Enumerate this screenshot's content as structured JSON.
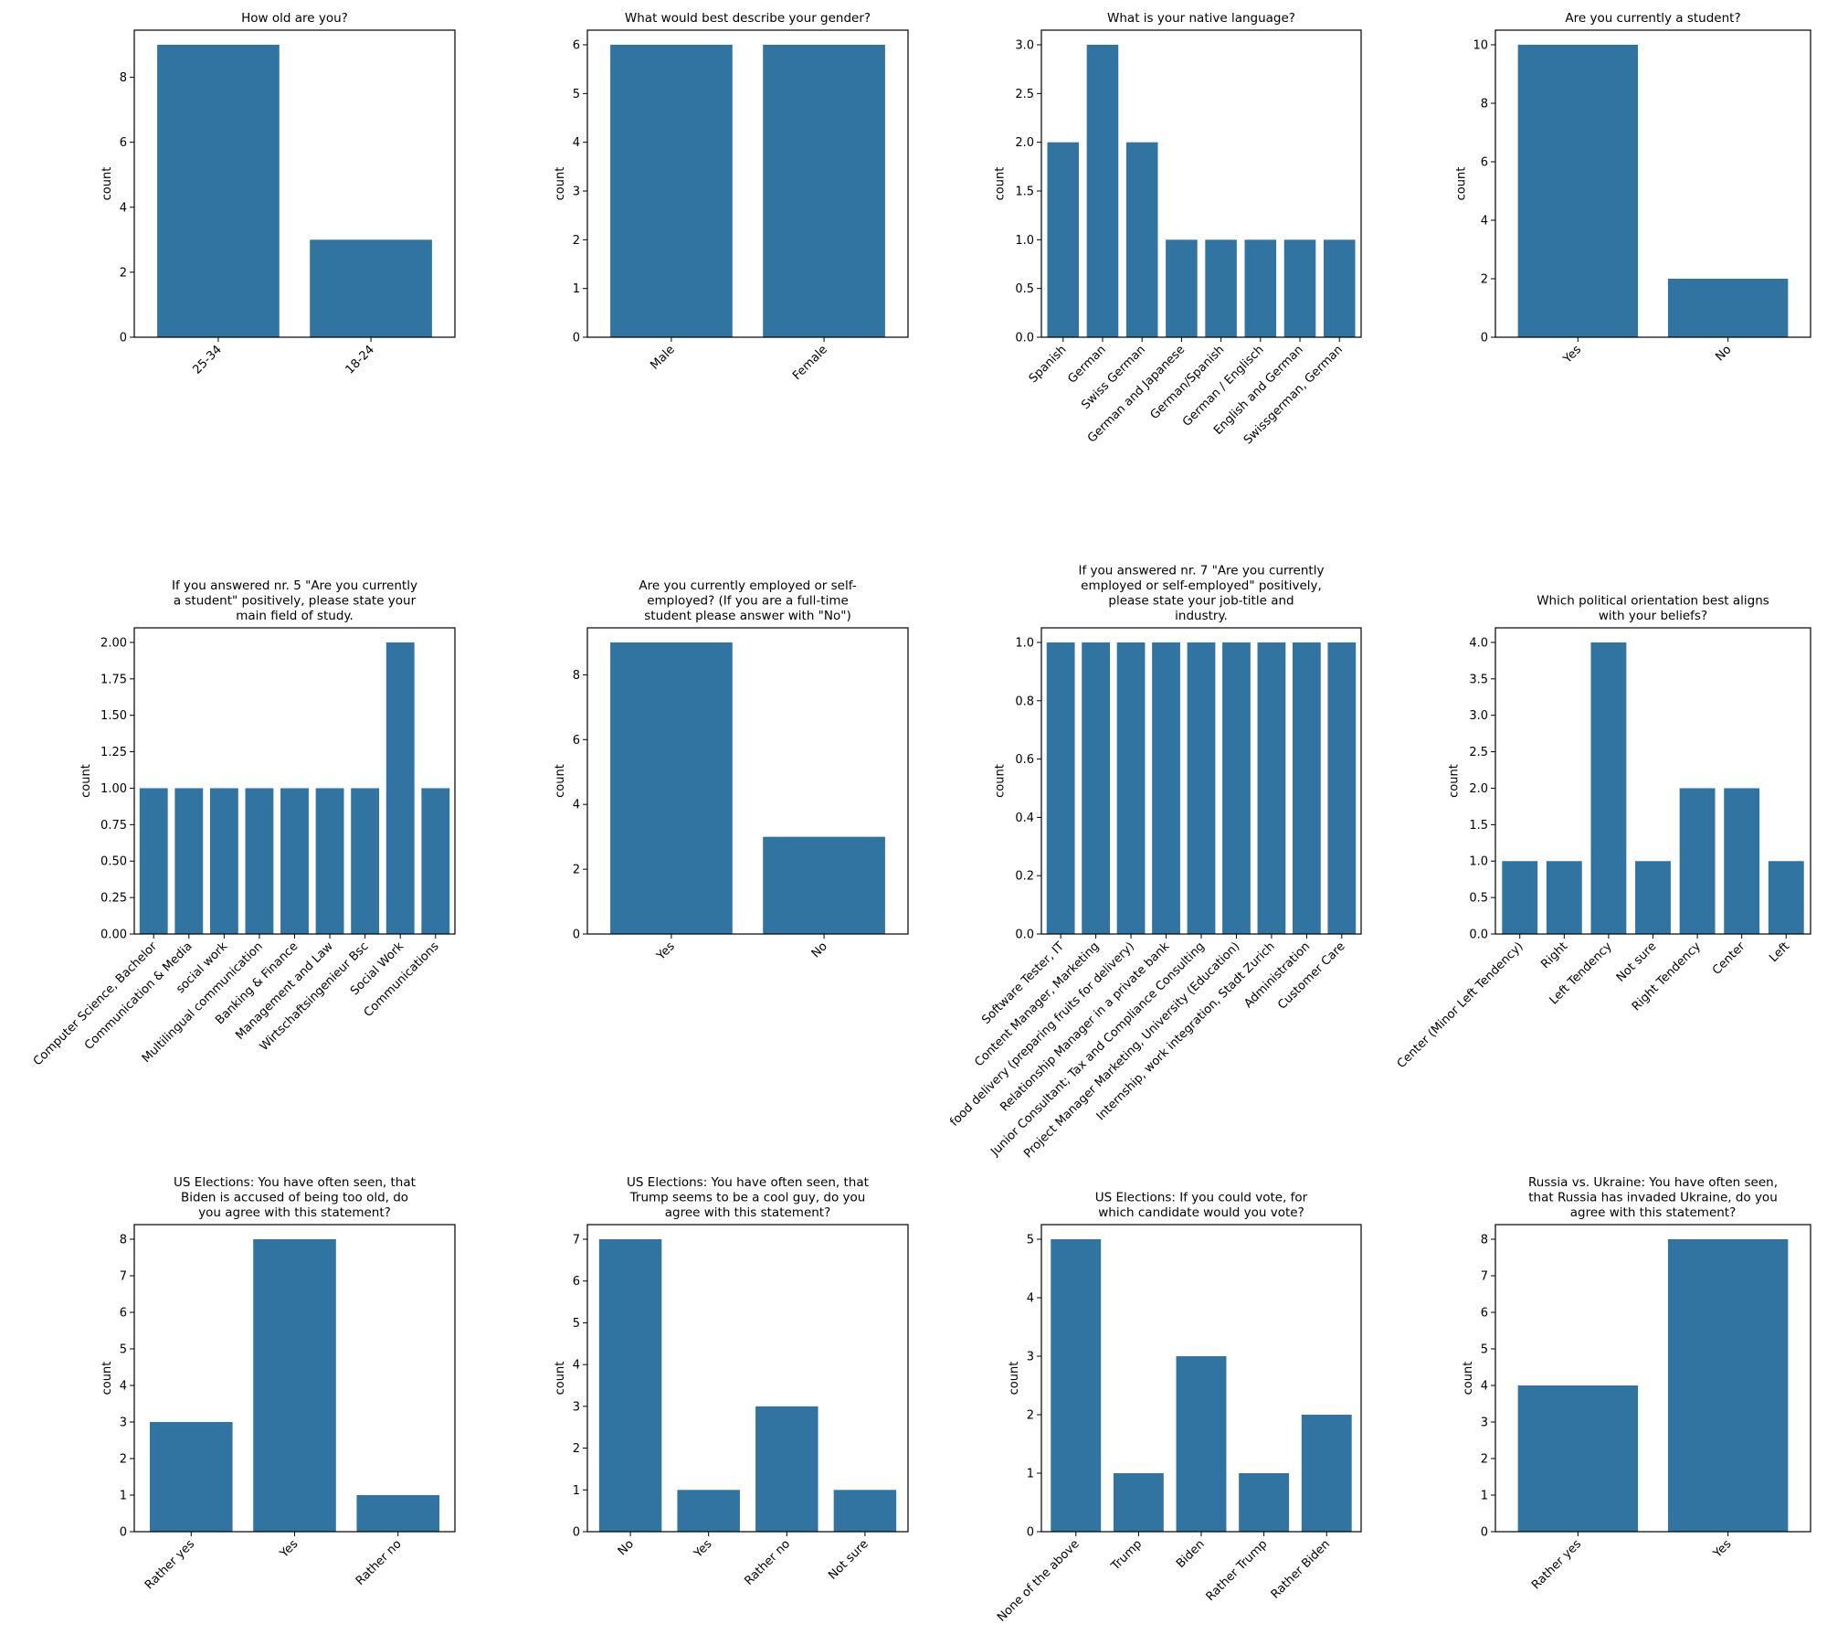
{
  "chart_data": [
    {
      "type": "bar",
      "title": "How old are you?",
      "xlabel": "",
      "ylabel": "count",
      "ylim": [
        0,
        9.45
      ],
      "yticks": [
        0,
        2,
        4,
        6,
        8
      ],
      "ytick_labels": [
        "0",
        "2",
        "4",
        "6",
        "8"
      ],
      "categories": [
        "25-34",
        "18-24"
      ],
      "values": [
        9,
        3
      ],
      "color": "#3274a1"
    },
    {
      "type": "bar",
      "title": "What would best describe your gender?",
      "xlabel": "",
      "ylabel": "count",
      "ylim": [
        0,
        6.3
      ],
      "yticks": [
        0,
        1,
        2,
        3,
        4,
        5,
        6
      ],
      "ytick_labels": [
        "0",
        "1",
        "2",
        "3",
        "4",
        "5",
        "6"
      ],
      "categories": [
        "Male",
        "Female"
      ],
      "values": [
        6,
        6
      ],
      "color": "#3274a1"
    },
    {
      "type": "bar",
      "title": "What is your native language?",
      "xlabel": "",
      "ylabel": "count",
      "ylim": [
        0,
        3.15
      ],
      "yticks": [
        0,
        0.5,
        1,
        1.5,
        2,
        2.5,
        3
      ],
      "ytick_labels": [
        "0.0",
        "0.5",
        "1.0",
        "1.5",
        "2.0",
        "2.5",
        "3.0"
      ],
      "categories": [
        "Spanish",
        "German",
        "Swiss German",
        "German and Japanese",
        "German/Spanish",
        "German / Englisch",
        "English and German",
        "Swissgerman, German"
      ],
      "values": [
        2,
        3,
        2,
        1,
        1,
        1,
        1,
        1
      ],
      "color": "#3274a1"
    },
    {
      "type": "bar",
      "title": "Are you currently a student?",
      "xlabel": "",
      "ylabel": "count",
      "ylim": [
        0,
        10.5
      ],
      "yticks": [
        0,
        2,
        4,
        6,
        8,
        10
      ],
      "ytick_labels": [
        "0",
        "2",
        "4",
        "6",
        "8",
        "10"
      ],
      "categories": [
        "Yes",
        "No"
      ],
      "values": [
        10,
        2
      ],
      "color": "#3274a1"
    },
    {
      "type": "bar",
      "title": "If you answered nr. 5 \"Are you currently\na student\" positively, please state your\nmain field of study.",
      "xlabel": "",
      "ylabel": "count",
      "ylim": [
        0,
        2.1
      ],
      "yticks": [
        0,
        0.25,
        0.5,
        0.75,
        1,
        1.25,
        1.5,
        1.75,
        2
      ],
      "ytick_labels": [
        "0.00",
        "0.25",
        "0.50",
        "0.75",
        "1.00",
        "1.25",
        "1.50",
        "1.75",
        "2.00"
      ],
      "categories": [
        "Computer Science, Bachelor",
        "Communication & Media",
        "social work",
        "Multilingual communication",
        "Banking & Finance",
        "Management and Law",
        "Wirtschaftsingenieur Bsc",
        "Social Work",
        "Communications"
      ],
      "values": [
        1,
        1,
        1,
        1,
        1,
        1,
        1,
        2,
        1
      ],
      "color": "#3274a1"
    },
    {
      "type": "bar",
      "title": "Are you currently employed or self-\nemployed? (If you are a full-time\nstudent please answer with \"No\")",
      "xlabel": "",
      "ylabel": "count",
      "ylim": [
        0,
        9.45
      ],
      "yticks": [
        0,
        2,
        4,
        6,
        8
      ],
      "ytick_labels": [
        "0",
        "2",
        "4",
        "6",
        "8"
      ],
      "categories": [
        "Yes",
        "No"
      ],
      "values": [
        9,
        3
      ],
      "color": "#3274a1"
    },
    {
      "type": "bar",
      "title": "If you answered nr. 7 \"Are you currently\nemployed or self-employed\" positively,\nplease state your job-title and\nindustry.",
      "xlabel": "",
      "ylabel": "count",
      "ylim": [
        0,
        1.05
      ],
      "yticks": [
        0,
        0.2,
        0.4,
        0.6,
        0.8,
        1
      ],
      "ytick_labels": [
        "0.0",
        "0.2",
        "0.4",
        "0.6",
        "0.8",
        "1.0"
      ],
      "categories": [
        "Software Tester, IT",
        "Content Manager, Marketing",
        "food delivery (preparing fruits for delivery)",
        "Relationship Manager in a private bank",
        "Junior Consultant; Tax and Compliance Consulting",
        "Project Manager Marketing, University (Education)",
        "Internship, work integration, Stadt Zurich",
        "Administration",
        "Customer Care"
      ],
      "values": [
        1,
        1,
        1,
        1,
        1,
        1,
        1,
        1,
        1
      ],
      "color": "#3274a1"
    },
    {
      "type": "bar",
      "title": "Which political orientation best aligns\nwith your beliefs?",
      "xlabel": "",
      "ylabel": "count",
      "ylim": [
        0,
        4.2
      ],
      "yticks": [
        0,
        0.5,
        1,
        1.5,
        2,
        2.5,
        3,
        3.5,
        4
      ],
      "ytick_labels": [
        "0.0",
        "0.5",
        "1.0",
        "1.5",
        "2.0",
        "2.5",
        "3.0",
        "3.5",
        "4.0"
      ],
      "categories": [
        "Center (Minor Left Tendency)",
        "Right",
        "Left Tendency",
        "Not sure",
        "Right Tendency",
        "Center",
        "Left"
      ],
      "values": [
        1,
        1,
        4,
        1,
        2,
        2,
        1
      ],
      "color": "#3274a1"
    },
    {
      "type": "bar",
      "title": "US Elections: You have often seen, that\nBiden is accused of being too old, do\nyou agree with this statement?",
      "xlabel": "",
      "ylabel": "count",
      "ylim": [
        0,
        8.4
      ],
      "yticks": [
        0,
        1,
        2,
        3,
        4,
        5,
        6,
        7,
        8
      ],
      "ytick_labels": [
        "0",
        "1",
        "2",
        "3",
        "4",
        "5",
        "6",
        "7",
        "8"
      ],
      "categories": [
        "Rather yes",
        "Yes",
        "Rather no"
      ],
      "values": [
        3,
        8,
        1
      ],
      "color": "#3274a1"
    },
    {
      "type": "bar",
      "title": "US Elections: You have often seen, that\nTrump seems to be a cool guy, do you\nagree with this statement?",
      "xlabel": "",
      "ylabel": "count",
      "ylim": [
        0,
        7.35
      ],
      "yticks": [
        0,
        1,
        2,
        3,
        4,
        5,
        6,
        7
      ],
      "ytick_labels": [
        "0",
        "1",
        "2",
        "3",
        "4",
        "5",
        "6",
        "7"
      ],
      "categories": [
        "No",
        "Yes",
        "Rather no",
        "Not sure"
      ],
      "values": [
        7,
        1,
        3,
        1
      ],
      "color": "#3274a1"
    },
    {
      "type": "bar",
      "title": "US Elections: If you could vote, for\nwhich candidate would you vote?",
      "xlabel": "",
      "ylabel": "count",
      "ylim": [
        0,
        5.25
      ],
      "yticks": [
        0,
        1,
        2,
        3,
        4,
        5
      ],
      "ytick_labels": [
        "0",
        "1",
        "2",
        "3",
        "4",
        "5"
      ],
      "categories": [
        "None of the above",
        "Trump",
        "Biden",
        "Rather Trump",
        "Rather Biden"
      ],
      "values": [
        5,
        1,
        3,
        1,
        2
      ],
      "color": "#3274a1"
    },
    {
      "type": "bar",
      "title": "Russia vs. Ukraine: You have often seen,\nthat Russia has invaded Ukraine, do you\nagree with this statement?",
      "xlabel": "",
      "ylabel": "count",
      "ylim": [
        0,
        8.4
      ],
      "yticks": [
        0,
        1,
        2,
        3,
        4,
        5,
        6,
        7,
        8
      ],
      "ytick_labels": [
        "0",
        "1",
        "2",
        "3",
        "4",
        "5",
        "6",
        "7",
        "8"
      ],
      "categories": [
        "Rather yes",
        "Yes"
      ],
      "values": [
        4,
        8
      ],
      "color": "#3274a1"
    }
  ]
}
